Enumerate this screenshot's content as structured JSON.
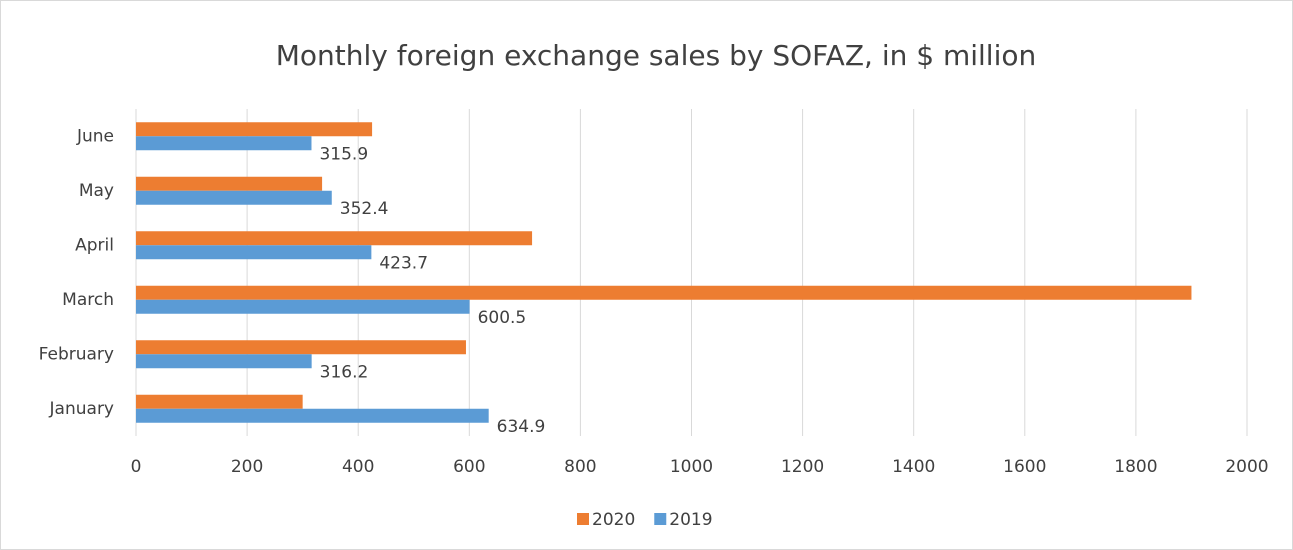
{
  "chart_data": {
    "type": "hbar",
    "title": "Monthly foreign exchange sales by SOFAZ, in $ million",
    "categories": [
      "January",
      "February",
      "March",
      "April",
      "May",
      "June"
    ],
    "series": [
      {
        "name": "2020",
        "color": "#ed7d31",
        "values": [
          300,
          594,
          1900,
          713,
          335,
          425
        ]
      },
      {
        "name": "2019",
        "color": "#5b9bd5",
        "values": [
          634.9,
          316.2,
          600.5,
          423.7,
          352.4,
          315.9
        ],
        "data_labels": true
      }
    ],
    "xlim": [
      0,
      2000
    ],
    "xticks": [
      0,
      200,
      400,
      600,
      800,
      1000,
      1200,
      1400,
      1600,
      1800,
      2000
    ],
    "grid": true,
    "legend": "bottom"
  }
}
